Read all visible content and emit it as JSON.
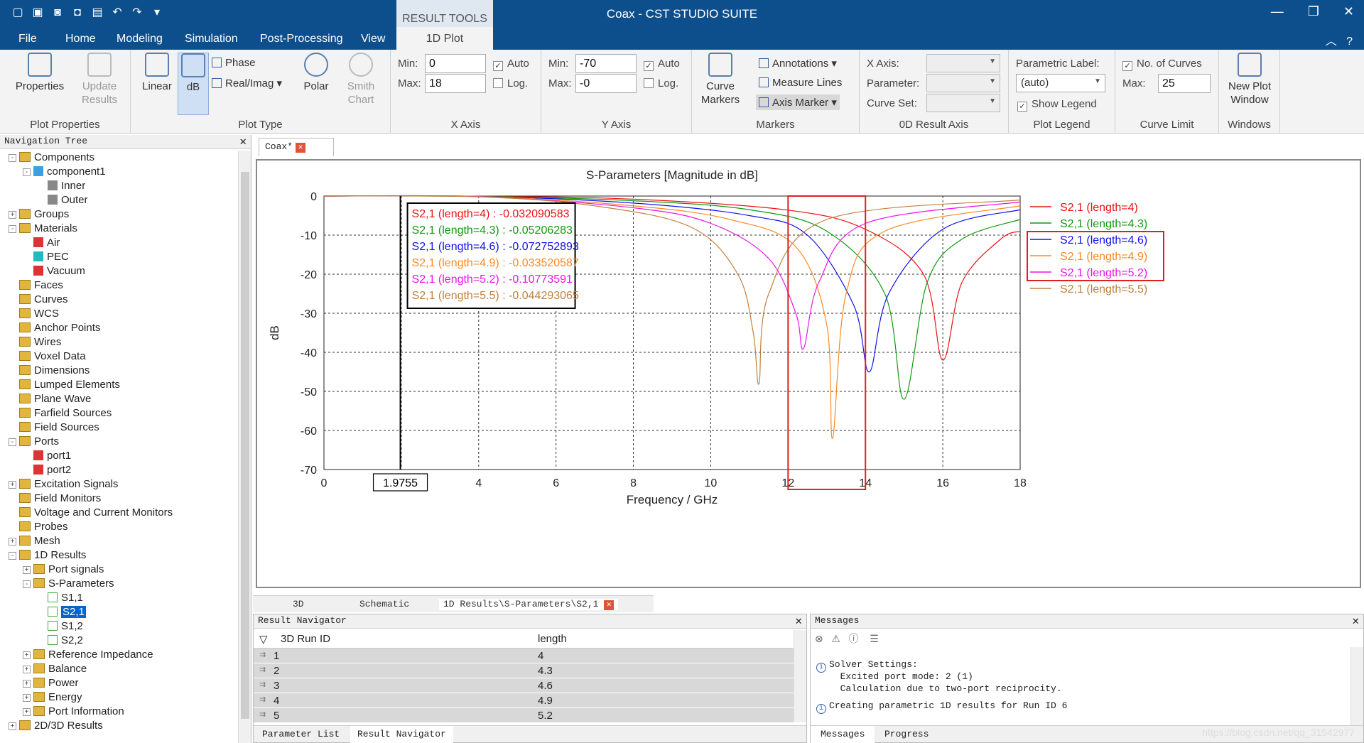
{
  "window": {
    "title": "Coax - CST STUDIO SUITE",
    "context_header": "RESULT TOOLS",
    "context_tab": "1D Plot"
  },
  "tabs": [
    "File",
    "Home",
    "Modeling",
    "Simulation",
    "Post-Processing",
    "View"
  ],
  "ribbon": {
    "plot_properties": {
      "label": "Plot Properties",
      "properties": "Properties",
      "update_results": "Update Results"
    },
    "plot_type": {
      "label": "Plot Type",
      "linear": "Linear",
      "db": "dB",
      "phase": "Phase",
      "realimag": "Real/Imag",
      "polar": "Polar",
      "smith": "Smith Chart"
    },
    "x_axis": {
      "label": "X Axis",
      "min_label": "Min:",
      "max_label": "Max:",
      "min": "0",
      "max": "18",
      "auto": "Auto",
      "log": "Log."
    },
    "y_axis": {
      "label": "Y Axis",
      "min_label": "Min:",
      "max_label": "Max:",
      "min": "-70",
      "max": "-0",
      "auto": "Auto",
      "log": "Log."
    },
    "markers": {
      "label": "Markers",
      "curve_markers": "Curve Markers",
      "annotations": "Annotations",
      "measure_lines": "Measure Lines",
      "axis_marker": "Axis Marker"
    },
    "result_axis": {
      "label": "0D Result Axis",
      "x_axis": "X Axis:",
      "parameter": "Parameter:",
      "curve_set": "Curve Set:"
    },
    "plot_legend": {
      "label": "Plot Legend",
      "parametric_label": "Parametric Label:",
      "value": "(auto)",
      "show_legend": "Show Legend"
    },
    "curve_limit": {
      "label": "Curve Limit",
      "no_of_curves": "No. of Curves",
      "max_label": "Max:",
      "max": "25"
    },
    "windows": {
      "label": "Windows",
      "new_plot": "New Plot Window"
    }
  },
  "nav": {
    "title": "Navigation Tree",
    "items": [
      {
        "label": "Components",
        "level": 0,
        "exp": "-",
        "icon": "folder"
      },
      {
        "label": "component1",
        "level": 1,
        "exp": "-",
        "icon": "comp"
      },
      {
        "label": "Inner",
        "level": 2,
        "exp": "",
        "icon": "gray"
      },
      {
        "label": "Outer",
        "level": 2,
        "exp": "",
        "icon": "gray"
      },
      {
        "label": "Groups",
        "level": 0,
        "exp": "+",
        "icon": "folder"
      },
      {
        "label": "Materials",
        "level": 0,
        "exp": "-",
        "icon": "folder"
      },
      {
        "label": "Air",
        "level": 1,
        "exp": "",
        "icon": "red"
      },
      {
        "label": "PEC",
        "level": 1,
        "exp": "",
        "icon": "cyan"
      },
      {
        "label": "Vacuum",
        "level": 1,
        "exp": "",
        "icon": "red"
      },
      {
        "label": "Faces",
        "level": 0,
        "exp": "",
        "icon": "folder"
      },
      {
        "label": "Curves",
        "level": 0,
        "exp": "",
        "icon": "folder"
      },
      {
        "label": "WCS",
        "level": 0,
        "exp": "",
        "icon": "folder"
      },
      {
        "label": "Anchor Points",
        "level": 0,
        "exp": "",
        "icon": "folder"
      },
      {
        "label": "Wires",
        "level": 0,
        "exp": "",
        "icon": "folder"
      },
      {
        "label": "Voxel Data",
        "level": 0,
        "exp": "",
        "icon": "folder"
      },
      {
        "label": "Dimensions",
        "level": 0,
        "exp": "",
        "icon": "folder"
      },
      {
        "label": "Lumped Elements",
        "level": 0,
        "exp": "",
        "icon": "folder"
      },
      {
        "label": "Plane Wave",
        "level": 0,
        "exp": "",
        "icon": "folder"
      },
      {
        "label": "Farfield Sources",
        "level": 0,
        "exp": "",
        "icon": "folder"
      },
      {
        "label": "Field Sources",
        "level": 0,
        "exp": "",
        "icon": "folder"
      },
      {
        "label": "Ports",
        "level": 0,
        "exp": "-",
        "icon": "folder"
      },
      {
        "label": "port1",
        "level": 1,
        "exp": "",
        "icon": "red"
      },
      {
        "label": "port2",
        "level": 1,
        "exp": "",
        "icon": "red"
      },
      {
        "label": "Excitation Signals",
        "level": 0,
        "exp": "+",
        "icon": "folder"
      },
      {
        "label": "Field Monitors",
        "level": 0,
        "exp": "",
        "icon": "folder"
      },
      {
        "label": "Voltage and Current Monitors",
        "level": 0,
        "exp": "",
        "icon": "folder"
      },
      {
        "label": "Probes",
        "level": 0,
        "exp": "",
        "icon": "folder"
      },
      {
        "label": "Mesh",
        "level": 0,
        "exp": "+",
        "icon": "folder"
      },
      {
        "label": "1D Results",
        "level": 0,
        "exp": "-",
        "icon": "folder"
      },
      {
        "label": "Port signals",
        "level": 1,
        "exp": "+",
        "icon": "folder"
      },
      {
        "label": "S-Parameters",
        "level": 1,
        "exp": "-",
        "icon": "folder"
      },
      {
        "label": "S1,1",
        "level": 2,
        "exp": "",
        "icon": "plot"
      },
      {
        "label": "S2,1",
        "level": 2,
        "exp": "",
        "icon": "plot",
        "selected": true
      },
      {
        "label": "S1,2",
        "level": 2,
        "exp": "",
        "icon": "plot"
      },
      {
        "label": "S2,2",
        "level": 2,
        "exp": "",
        "icon": "plot"
      },
      {
        "label": "Reference Impedance",
        "level": 1,
        "exp": "+",
        "icon": "folder"
      },
      {
        "label": "Balance",
        "level": 1,
        "exp": "+",
        "icon": "folder"
      },
      {
        "label": "Power",
        "level": 1,
        "exp": "+",
        "icon": "folder"
      },
      {
        "label": "Energy",
        "level": 1,
        "exp": "+",
        "icon": "folder"
      },
      {
        "label": "Port Information",
        "level": 1,
        "exp": "+",
        "icon": "folder"
      },
      {
        "label": "2D/3D Results",
        "level": 0,
        "exp": "+",
        "icon": "folder"
      }
    ]
  },
  "doc_tab": "Coax*",
  "bottom_tabs": [
    "3D",
    "Schematic",
    "1D Results\\S-Parameters\\S2,1"
  ],
  "chart_data": {
    "type": "line",
    "title": "S-Parameters [Magnitude in dB]",
    "xlabel": "Frequency / GHz",
    "ylabel": "dB",
    "xlim": [
      0,
      18
    ],
    "ylim": [
      -70,
      0
    ],
    "x_ticks": [
      "0",
      "2",
      "4",
      "6",
      "8",
      "10",
      "12",
      "14",
      "16",
      "18"
    ],
    "y_ticks": [
      "0",
      "-10",
      "-20",
      "-30",
      "-40",
      "-50",
      "-60",
      "-70"
    ],
    "grid": true,
    "legend_position": "right",
    "axis_marker": {
      "x": 1.9755,
      "label": "1.9755"
    },
    "highlight_x_range": [
      12,
      14
    ],
    "series": [
      {
        "name": "S2,1 (length=4)",
        "color": "#ee1111",
        "marker_text": "S2,1 (length=4) : -0.032090583",
        "x": [
          0,
          4,
          8,
          12,
          14,
          15.5,
          16,
          16.5,
          17.5,
          18
        ],
        "y": [
          0,
          -0.05,
          -0.8,
          -3.6,
          -8.5,
          -20,
          -42,
          -22,
          -11,
          -9
        ]
      },
      {
        "name": "S2,1 (length=4.3)",
        "color": "#119911",
        "marker_text": "S2,1 (length=4.3) : -0.05206283",
        "x": [
          0,
          4,
          8,
          11,
          13,
          14.5,
          15,
          15.6,
          16.5,
          18
        ],
        "y": [
          0,
          -0.08,
          -1.2,
          -3.5,
          -9,
          -25,
          -52,
          -22,
          -11,
          -6
        ]
      },
      {
        "name": "S2,1 (length=4.6)",
        "color": "#1111ee",
        "marker_text": "S2,1 (length=4.6) : -0.072752893",
        "x": [
          0,
          4,
          8,
          11,
          12.5,
          13.7,
          14.1,
          14.6,
          16,
          18
        ],
        "y": [
          0,
          -0.1,
          -1.8,
          -5,
          -10,
          -28,
          -45,
          -25,
          -8.5,
          -3.5
        ]
      },
      {
        "name": "S2,1 (length=4.9)",
        "color": "#ff8822",
        "marker_text": "S2,1 (length=4.9) : -0.033520587",
        "x": [
          0,
          4,
          8,
          10.5,
          12.2,
          13,
          13.15,
          13.5,
          14.5,
          18
        ],
        "y": [
          0,
          -0.1,
          -2.5,
          -6,
          -13,
          -33,
          -62,
          -25,
          -9,
          -2.5
        ]
      },
      {
        "name": "S2,1 (length=5.2)",
        "color": "#ee11ee",
        "marker_text": "S2,1 (length=5.2) : -0.10773591",
        "x": [
          0,
          4,
          8,
          10,
          11.5,
          12.2,
          12.4,
          12.8,
          14,
          18
        ],
        "y": [
          0,
          -0.15,
          -3,
          -7,
          -16,
          -30,
          -39,
          -22,
          -7,
          -1.5
        ]
      },
      {
        "name": "S2,1 (length=5.5)",
        "color": "#c08040",
        "marker_text": "S2,1 (length=5.5) : -0.044293065",
        "x": [
          0,
          4,
          7,
          9.5,
          10.7,
          11.1,
          11.25,
          11.5,
          13,
          18
        ],
        "y": [
          0,
          -0.2,
          -2.5,
          -8,
          -20,
          -35,
          -48,
          -25,
          -6,
          -1
        ]
      }
    ],
    "legend_highlighted": [
      "S2,1 (length=4.6)",
      "S2,1 (length=4.9)",
      "S2,1 (length=5.2)"
    ]
  },
  "result_navigator": {
    "title": "Result Navigator",
    "columns": [
      "3D Run ID",
      "length"
    ],
    "rows": [
      [
        "1",
        "4"
      ],
      [
        "2",
        "4.3"
      ],
      [
        "3",
        "4.6"
      ],
      [
        "4",
        "4.9"
      ],
      [
        "5",
        "5.2"
      ]
    ],
    "tabs": [
      "Parameter List",
      "Result Navigator"
    ]
  },
  "messages": {
    "title": "Messages",
    "lines": [
      "Solver Settings:",
      "  Excited port mode: 2 (1)",
      "  Calculation due to two-port reciprocity.",
      "Creating parametric 1D results for Run ID 6"
    ],
    "tabs": [
      "Messages",
      "Progress"
    ]
  },
  "watermark": "https://blog.csdn.net/qq_31542977"
}
